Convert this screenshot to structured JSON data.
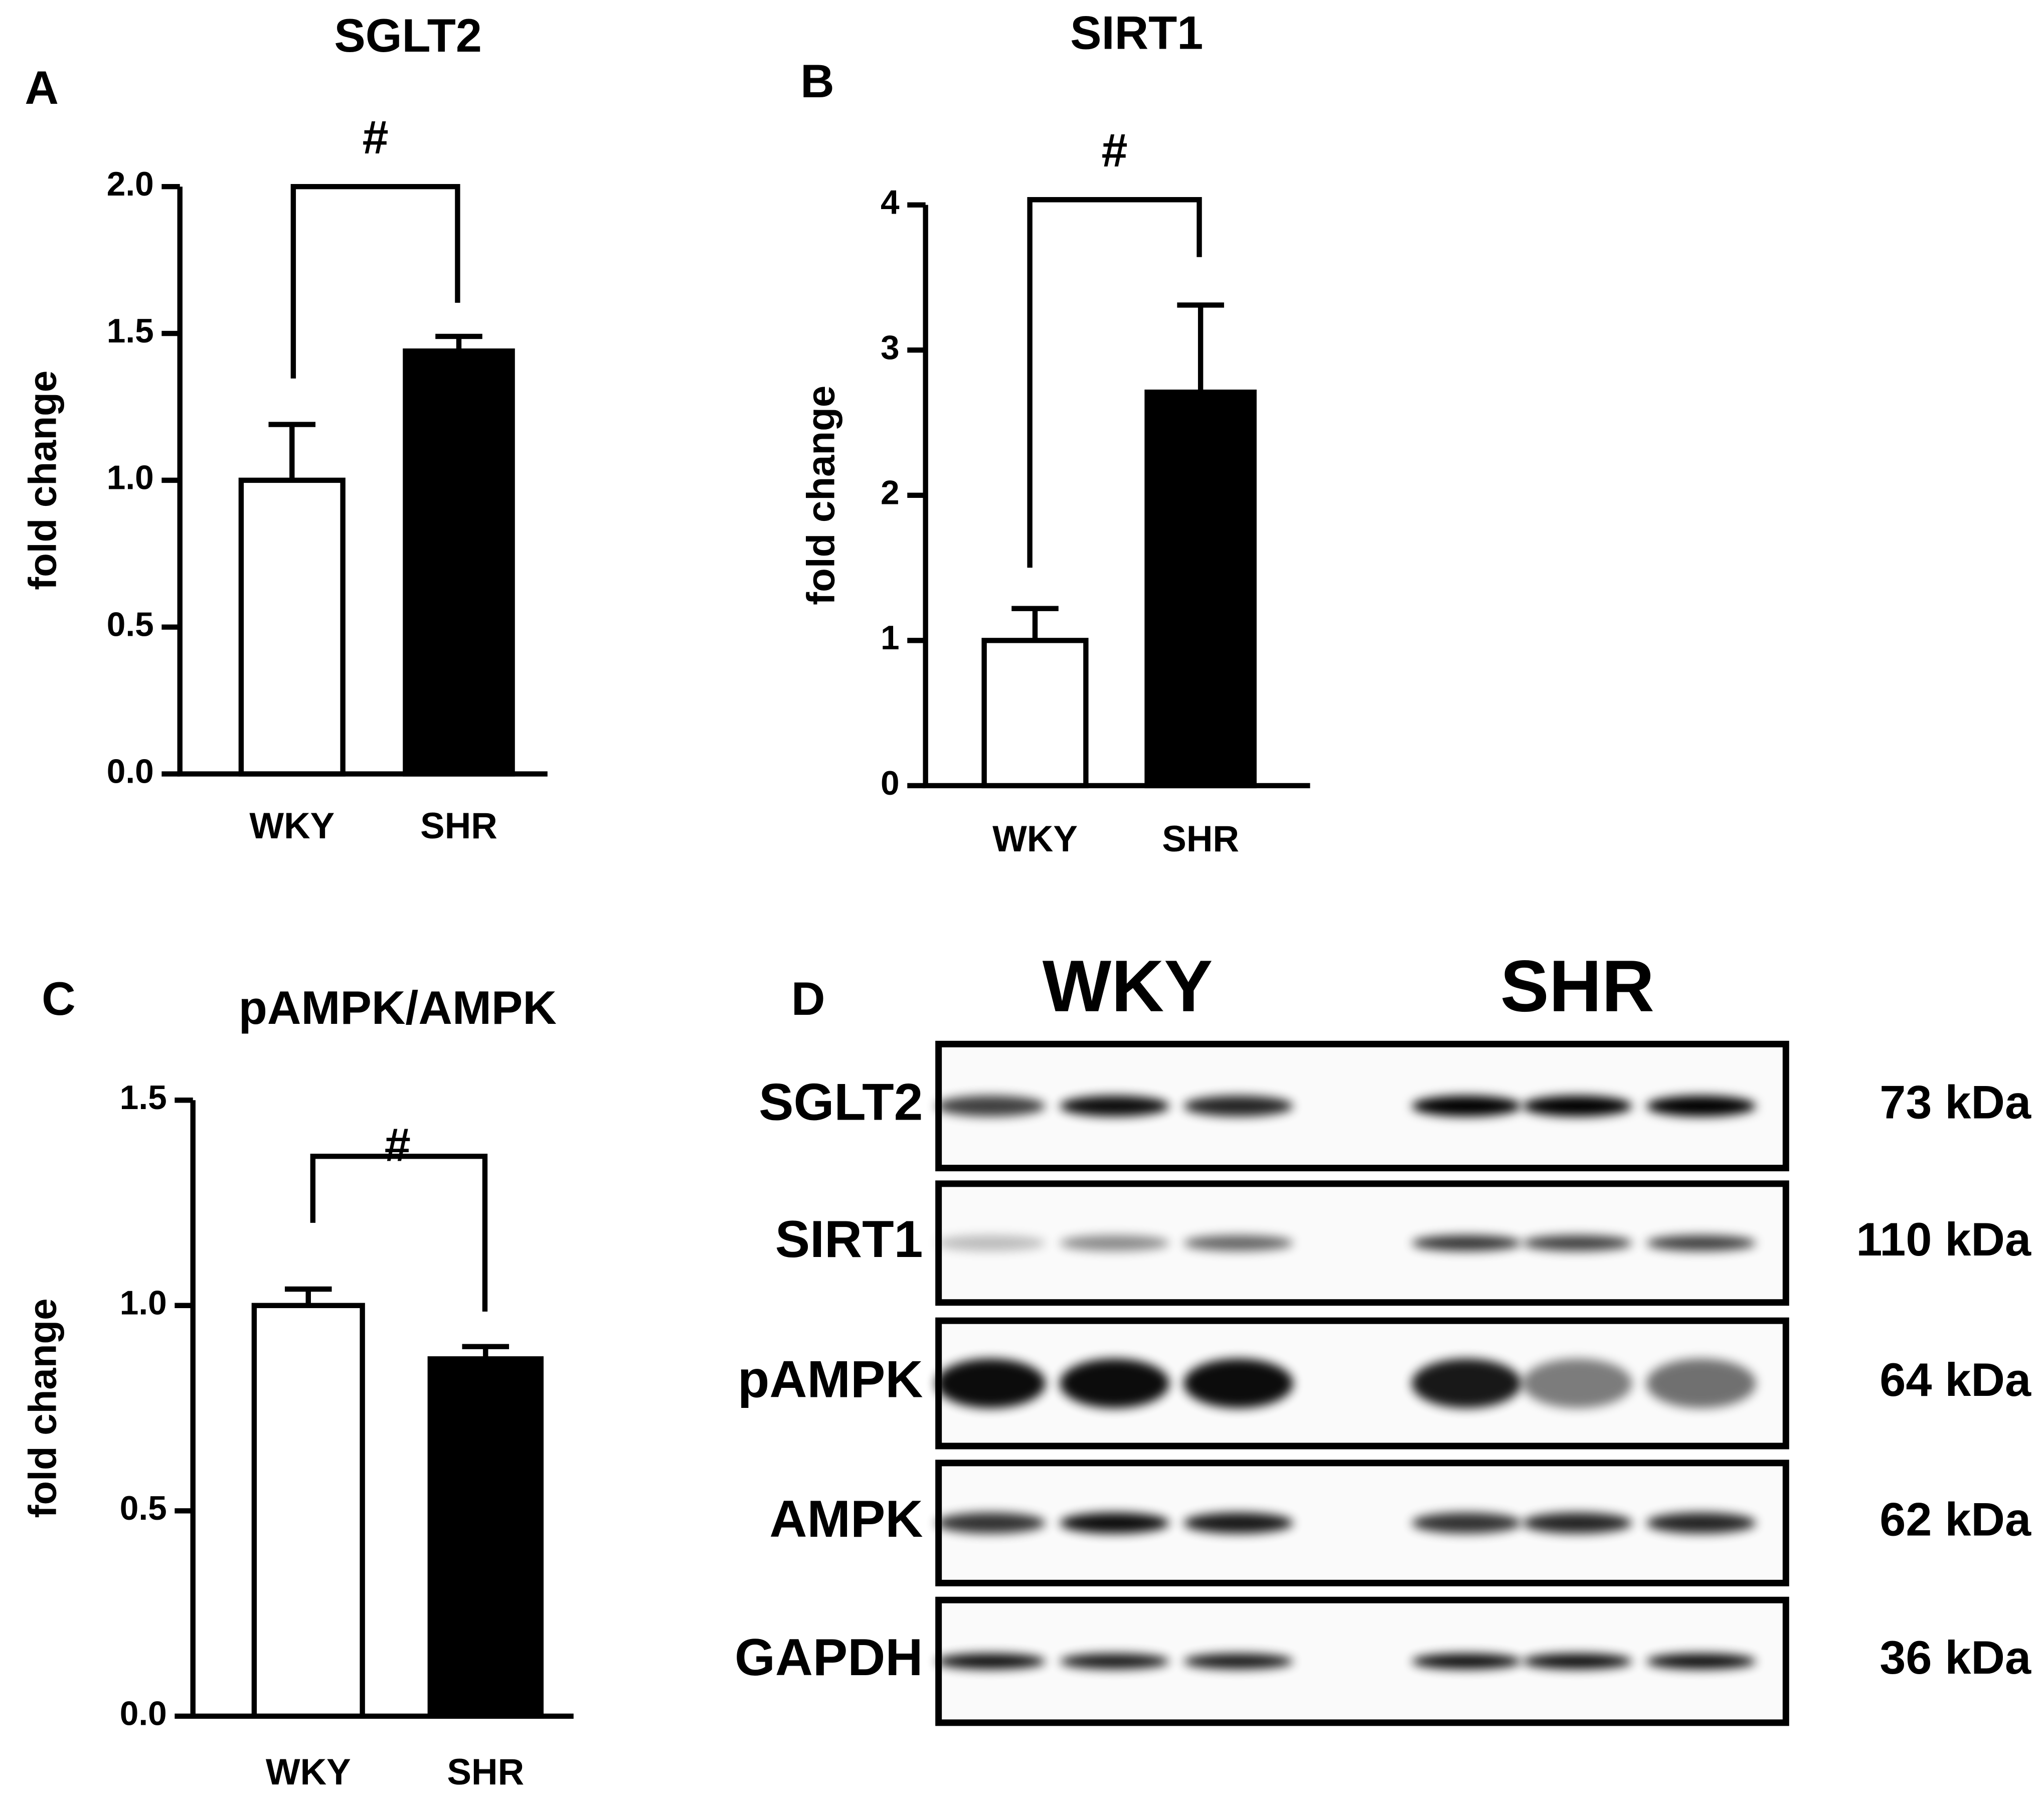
{
  "chart_data": [
    {
      "type": "bar",
      "panel_label": "A",
      "title": "SGLT2",
      "y_label": "fold change",
      "categories": [
        "WKY",
        "SHR"
      ],
      "values": [
        1.0,
        1.44
      ],
      "errors": [
        0.19,
        0.05
      ],
      "colors": [
        "#ffffff",
        "#000000"
      ],
      "ylim": [
        0,
        2
      ],
      "yticks": [
        {
          "value": 0,
          "label": "0.0"
        },
        {
          "value": 0.5,
          "label": "0.5"
        },
        {
          "value": 1,
          "label": "1.0"
        },
        {
          "value": 1.5,
          "label": "1.5"
        },
        {
          "value": 2,
          "label": "2.0"
        }
      ],
      "annotation": "#"
    },
    {
      "type": "bar",
      "panel_label": "B",
      "title": "SIRT1",
      "y_label": "fold change",
      "categories": [
        "WKY",
        "SHR"
      ],
      "values": [
        1.0,
        2.71
      ],
      "errors": [
        0.22,
        0.6
      ],
      "colors": [
        "#ffffff",
        "#000000"
      ],
      "ylim": [
        0,
        4
      ],
      "yticks": [
        0,
        1,
        2,
        3,
        4
      ],
      "annotation": "#"
    },
    {
      "type": "bar",
      "panel_label": "C",
      "title": "pAMPK/AMPK",
      "y_label": "fold change",
      "categories": [
        "WKY",
        "SHR"
      ],
      "values": [
        1.0,
        0.87
      ],
      "errors": [
        0.04,
        0.03
      ],
      "colors": [
        "#ffffff",
        "#000000"
      ],
      "ylim": [
        0,
        1.5
      ],
      "yticks": [
        {
          "value": 0,
          "label": "0.0"
        },
        {
          "value": 0.5,
          "label": "0.5"
        },
        {
          "value": 1,
          "label": "1.0"
        },
        {
          "value": 1.5,
          "label": "1.5"
        }
      ],
      "annotation": "#"
    }
  ],
  "blot": {
    "panel_label": "D",
    "groups": [
      "WKY",
      "SHR"
    ],
    "rows": [
      {
        "label": "SGLT2",
        "size": "73 kDa"
      },
      {
        "label": "SIRT1",
        "size": "110 kDa"
      },
      {
        "label": "pAMPK",
        "size": "64 kDa"
      },
      {
        "label": "AMPK",
        "size": "62 kDa"
      },
      {
        "label": "GAPDH",
        "size": "36 kDa"
      }
    ]
  }
}
